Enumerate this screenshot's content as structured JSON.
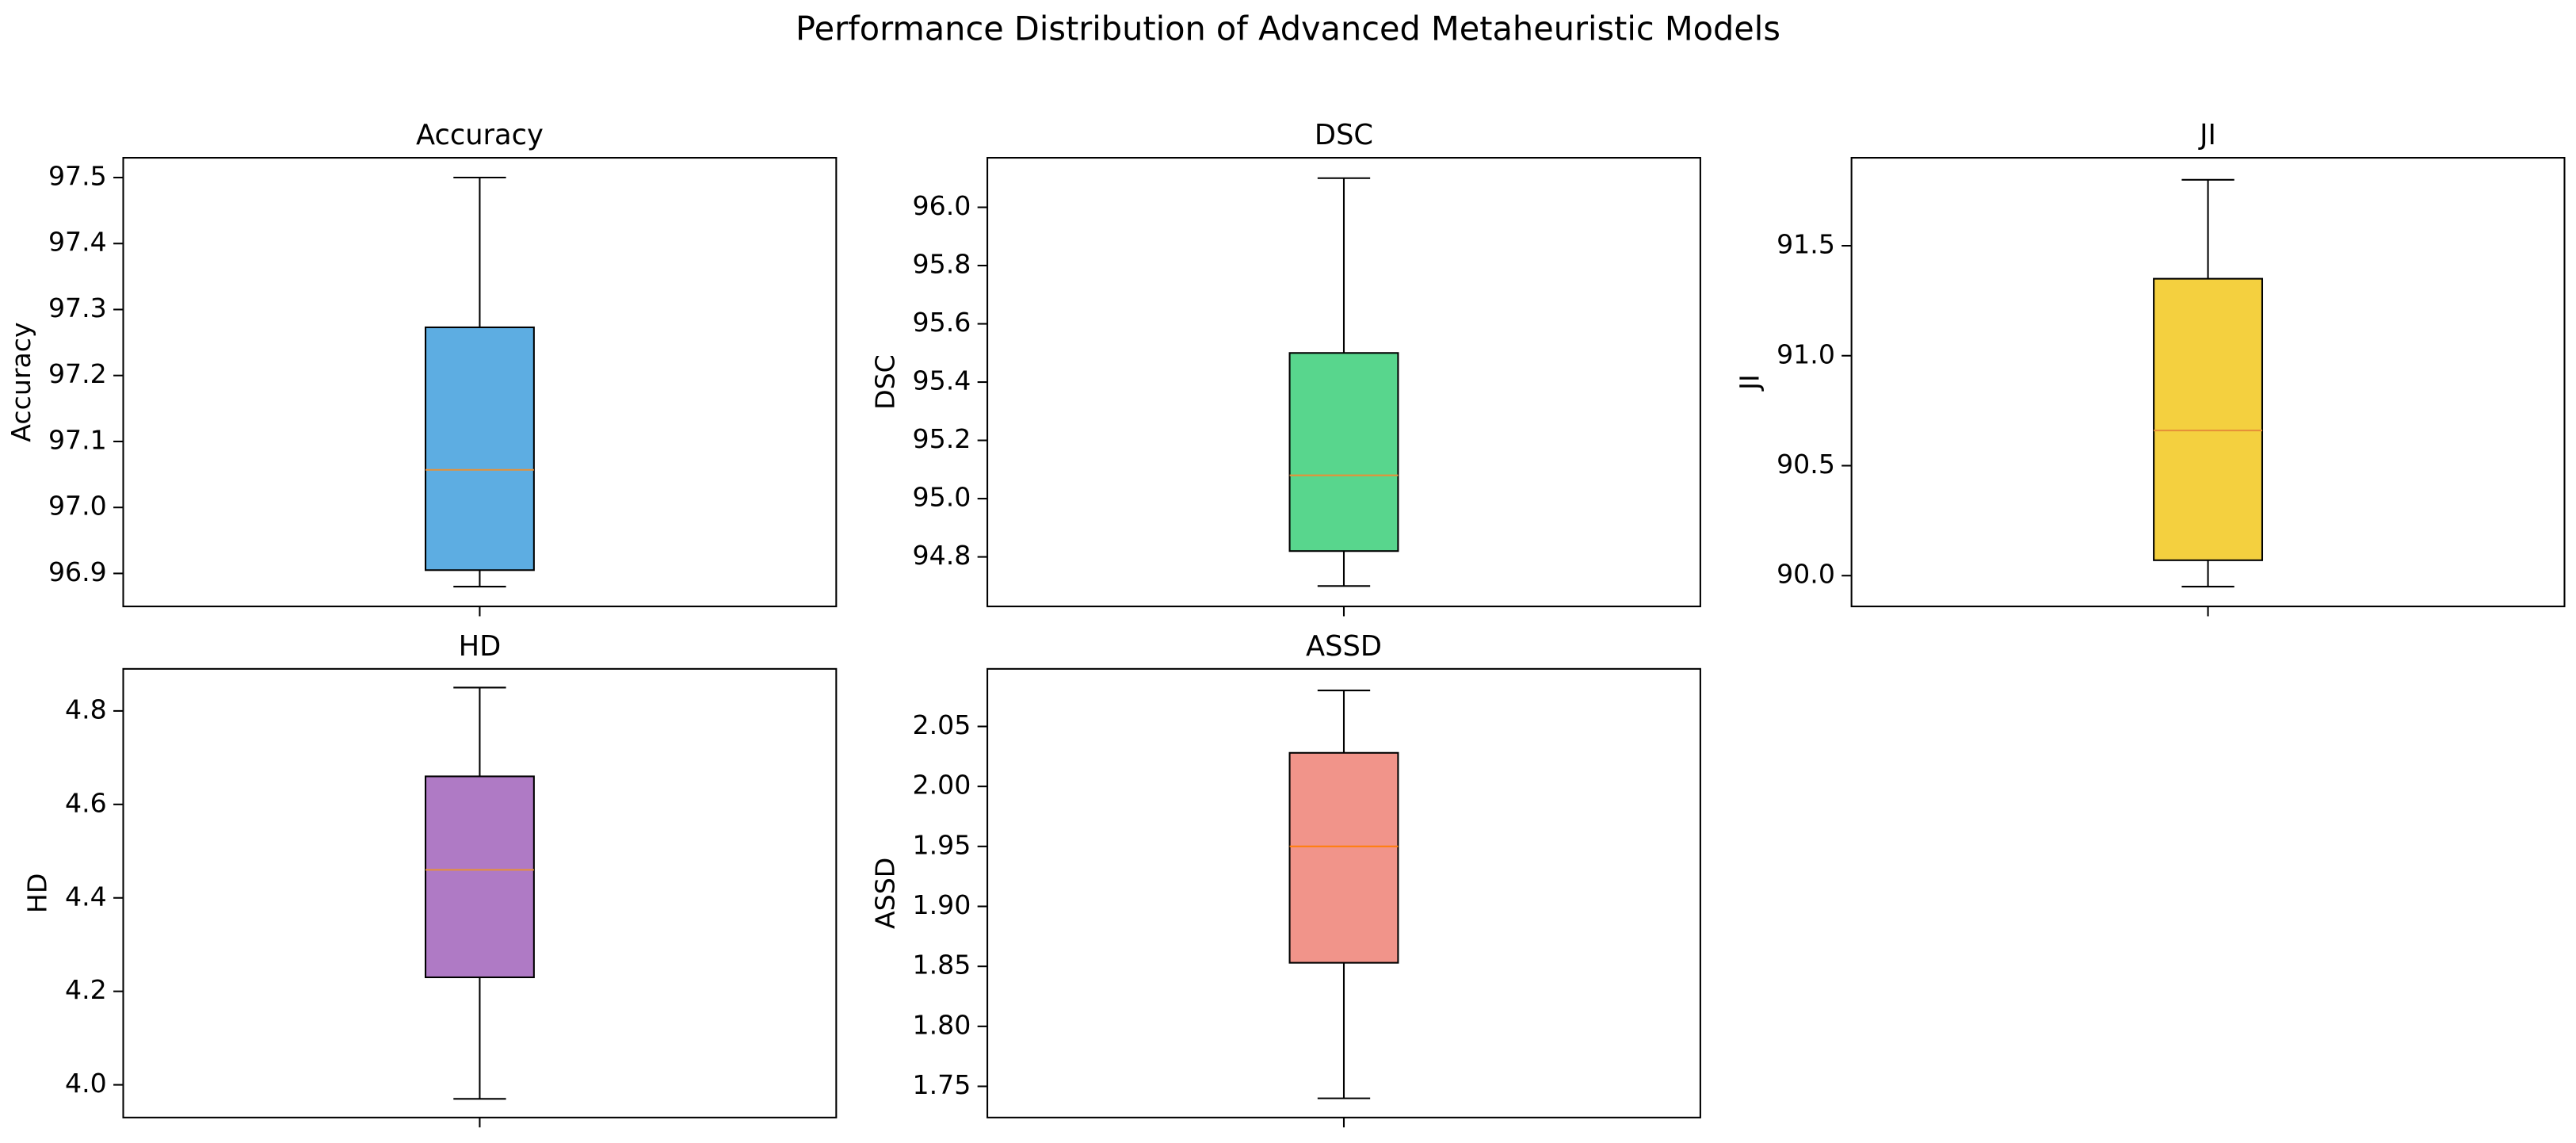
{
  "title": "Performance Distribution of Advanced Metaheuristic Models",
  "chart_data": [
    {
      "type": "box",
      "title": "Accuracy",
      "ylabel": "Accuracy",
      "color": "#5DADE2",
      "median_color": "#E69138",
      "box": {
        "min": 96.88,
        "q1": 96.905,
        "median": 97.057,
        "q3": 97.273,
        "max": 97.5
      },
      "ylim": [
        96.85,
        97.53
      ],
      "yticks": [
        96.9,
        {
          "value": 97.0,
          "label": "97.0"
        },
        97.1,
        97.2,
        97.3,
        97.4,
        97.5
      ]
    },
    {
      "type": "box",
      "title": "DSC",
      "ylabel": "DSC",
      "color": "#58D68D",
      "median_color": "#E69138",
      "box": {
        "min": 94.7,
        "q1": 94.82,
        "median": 95.08,
        "q3": 95.5,
        "max": 96.1
      },
      "ylim": [
        94.63,
        96.17
      ],
      "yticks": [
        94.8,
        {
          "value": 95.0,
          "label": "95.0"
        },
        95.2,
        95.4,
        95.6,
        95.8,
        {
          "value": 96.0,
          "label": "96.0"
        }
      ]
    },
    {
      "type": "box",
      "title": "JI",
      "ylabel": "JI",
      "color": "#F4D03F",
      "median_color": "#E69138",
      "box": {
        "min": 89.95,
        "q1": 90.07,
        "median": 90.66,
        "q3": 91.35,
        "max": 91.8
      },
      "ylim": [
        89.86,
        91.9
      ],
      "yticks": [
        {
          "value": 90.0,
          "label": "90.0"
        },
        90.5,
        {
          "value": 91.0,
          "label": "91.0"
        },
        91.5
      ]
    },
    {
      "type": "box",
      "title": "HD",
      "ylabel": "HD",
      "color": "#AF7AC5",
      "median_color": "#E69138",
      "box": {
        "min": 3.97,
        "q1": 4.23,
        "median": 4.46,
        "q3": 4.66,
        "max": 4.85
      },
      "ylim": [
        3.93,
        4.89
      ],
      "yticks": [
        {
          "value": 4.0,
          "label": "4.0"
        },
        4.2,
        4.4,
        4.6,
        4.8
      ]
    },
    {
      "type": "box",
      "title": "ASSD",
      "ylabel": "ASSD",
      "color": "#F1948A",
      "median_color": "#FF7F0E",
      "box": {
        "min": 1.74,
        "q1": 1.853,
        "median": 1.95,
        "q3": 2.028,
        "max": 2.08
      },
      "ylim": [
        1.724,
        2.098
      ],
      "yticks": [
        1.75,
        {
          "value": 1.8,
          "label": "1.80"
        },
        1.85,
        {
          "value": 1.9,
          "label": "1.90"
        },
        1.95,
        {
          "value": 2.0,
          "label": "2.00"
        },
        2.05
      ]
    }
  ]
}
